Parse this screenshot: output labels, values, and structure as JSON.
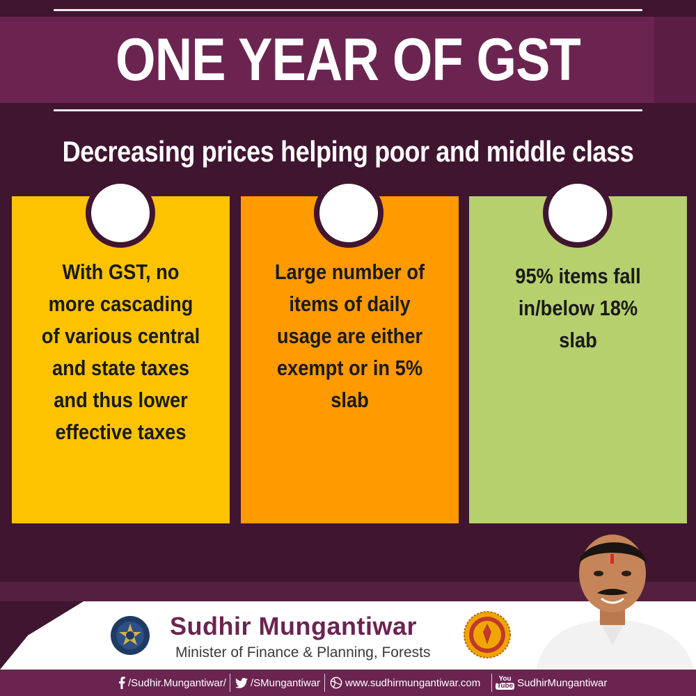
{
  "header": {
    "title": "ONE YEAR OF GST",
    "subtitle": "Decreasing prices helping poor and middle class"
  },
  "cards": [
    {
      "text": "With GST, no more cascading of various central and state taxes and thus lower effective taxes",
      "color": "#fdc300"
    },
    {
      "text": "Large number of items of daily usage are either exempt or in 5% slab",
      "color": "#ff9a00"
    },
    {
      "text": "95% items fall in/below 18% slab",
      "color": "#b5d06c"
    }
  ],
  "footer": {
    "name": "Sudhir Mungantiwar",
    "role": "Minister of Finance & Planning, Forests",
    "social": {
      "facebook": "/Sudhir.Mungantiwar/",
      "twitter": "/SMungantiwar",
      "website": "www.sudhirmungantiwar.com",
      "youtube": "SudhirMungantiwar"
    },
    "youtube_logo": {
      "you": "You",
      "tube": "Tube"
    }
  },
  "colors": {
    "background": "#3f1530",
    "band": "#6b2450",
    "accent_text": "#6b2450"
  },
  "icons": [
    "facebook-icon",
    "twitter-icon",
    "globe-icon",
    "youtube-icon"
  ]
}
